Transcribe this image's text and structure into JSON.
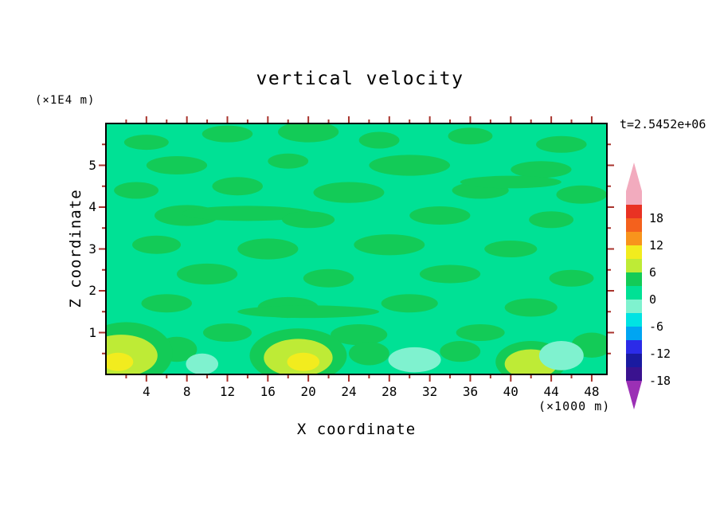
{
  "labels": {
    "title": "vertical velocity",
    "x_axis": "X coordinate",
    "y_axis": "Z coordinate",
    "y_unit": "(×1E4 m)",
    "x_unit": "(×1000 m)",
    "timestamp": "t=2.5452e+06"
  },
  "colors": {
    "background": "#ffffff",
    "frame": "#000000",
    "tick": "#A8332C",
    "text": "#000000"
  },
  "chart_data": {
    "type": "heatmap",
    "style": "filled-contour",
    "title": "vertical velocity",
    "xlabel": "X coordinate (×1000 m)",
    "ylabel": "Z coordinate (×1E4 m)",
    "timestamp": "t=2.5452e+06",
    "x_range": [
      0,
      49.5
    ],
    "z_range": [
      0,
      6
    ],
    "x_tick_labels": [
      4,
      8,
      12,
      16,
      20,
      24,
      28,
      32,
      36,
      40,
      44,
      48
    ],
    "y_tick_labels": [
      1,
      2,
      3,
      4,
      5
    ],
    "x_minor_step": 2,
    "y_minor_step": 0.5,
    "contour_interval": 3,
    "colorbar": {
      "labels": [
        18,
        12,
        6,
        0,
        -6,
        -12,
        -18
      ],
      "segments": [
        {
          "range": [
            18,
            21
          ],
          "color": "#F2ABBE"
        },
        {
          "range": [
            15,
            18
          ],
          "color": "#E93223"
        },
        {
          "range": [
            12,
            15
          ],
          "color": "#F4611D"
        },
        {
          "range": [
            9,
            12
          ],
          "color": "#F8941C"
        },
        {
          "range": [
            6,
            9
          ],
          "color": "#F2EC1E"
        },
        {
          "range": [
            3,
            6
          ],
          "color": "#BEEB36"
        },
        {
          "range": [
            0,
            3
          ],
          "color": "#13CB57"
        },
        {
          "range": [
            -3,
            0
          ],
          "color": "#00E195"
        },
        {
          "range": [
            -6,
            -3
          ],
          "color": "#7FF2CF"
        },
        {
          "range": [
            -9,
            -6
          ],
          "color": "#00E3E3"
        },
        {
          "range": [
            -12,
            -9
          ],
          "color": "#00A5F2"
        },
        {
          "range": [
            -15,
            -12
          ],
          "color": "#2B2BE8"
        },
        {
          "range": [
            -18,
            -15
          ],
          "color": "#1A1AA0"
        },
        {
          "range": [
            -21,
            -18
          ],
          "color": "#3A128F"
        }
      ],
      "top_arrow_color": "#F2ABBE",
      "bottom_arrow_color": "#9B30B5"
    },
    "field": {
      "background_level": [
        -3,
        0
      ],
      "background_color": "#00E195",
      "level_colors": {
        "p0": "#13CB57",
        "p3": "#BEEB36",
        "p6": "#F2EC1E",
        "m6": "#7FF2CF"
      },
      "features": [
        {
          "level": "p0",
          "x": 4,
          "z": 5.55,
          "rx": 2.2,
          "rz": 0.18
        },
        {
          "level": "p0",
          "x": 12,
          "z": 5.75,
          "rx": 2.5,
          "rz": 0.2
        },
        {
          "level": "p0",
          "x": 20,
          "z": 5.8,
          "rx": 3.0,
          "rz": 0.25
        },
        {
          "level": "p0",
          "x": 27,
          "z": 5.6,
          "rx": 2.0,
          "rz": 0.2
        },
        {
          "level": "p0",
          "x": 36,
          "z": 5.7,
          "rx": 2.2,
          "rz": 0.2
        },
        {
          "level": "p0",
          "x": 45,
          "z": 5.5,
          "rx": 2.5,
          "rz": 0.2
        },
        {
          "level": "p0",
          "x": 7,
          "z": 5.0,
          "rx": 3.0,
          "rz": 0.22
        },
        {
          "level": "p0",
          "x": 18,
          "z": 5.1,
          "rx": 2.0,
          "rz": 0.18
        },
        {
          "level": "p0",
          "x": 30,
          "z": 5.0,
          "rx": 4.0,
          "rz": 0.25
        },
        {
          "level": "p0",
          "x": 43,
          "z": 4.9,
          "rx": 3.0,
          "rz": 0.2
        },
        {
          "level": "p0",
          "x": 3,
          "z": 4.4,
          "rx": 2.2,
          "rz": 0.2
        },
        {
          "level": "p0",
          "x": 13,
          "z": 4.5,
          "rx": 2.5,
          "rz": 0.22
        },
        {
          "level": "p0",
          "x": 24,
          "z": 4.35,
          "rx": 3.5,
          "rz": 0.25
        },
        {
          "level": "p0",
          "x": 37,
          "z": 4.4,
          "rx": 2.8,
          "rz": 0.2
        },
        {
          "level": "p0",
          "x": 47,
          "z": 4.3,
          "rx": 2.5,
          "rz": 0.22
        },
        {
          "level": "p0",
          "x": 40,
          "z": 4.6,
          "rx": 5.0,
          "rz": 0.15
        },
        {
          "level": "p0",
          "x": 8,
          "z": 3.8,
          "rx": 3.2,
          "rz": 0.25
        },
        {
          "level": "p0",
          "x": 14,
          "z": 3.85,
          "rx": 6.5,
          "rz": 0.18
        },
        {
          "level": "p0",
          "x": 20,
          "z": 3.7,
          "rx": 2.6,
          "rz": 0.2
        },
        {
          "level": "p0",
          "x": 33,
          "z": 3.8,
          "rx": 3.0,
          "rz": 0.22
        },
        {
          "level": "p0",
          "x": 44,
          "z": 3.7,
          "rx": 2.2,
          "rz": 0.2
        },
        {
          "level": "p0",
          "x": 5,
          "z": 3.1,
          "rx": 2.4,
          "rz": 0.22
        },
        {
          "level": "p0",
          "x": 16,
          "z": 3.0,
          "rx": 3.0,
          "rz": 0.25
        },
        {
          "level": "p0",
          "x": 28,
          "z": 3.1,
          "rx": 3.5,
          "rz": 0.25
        },
        {
          "level": "p0",
          "x": 40,
          "z": 3.0,
          "rx": 2.6,
          "rz": 0.2
        },
        {
          "level": "p0",
          "x": 10,
          "z": 2.4,
          "rx": 3.0,
          "rz": 0.25
        },
        {
          "level": "p0",
          "x": 22,
          "z": 2.3,
          "rx": 2.5,
          "rz": 0.22
        },
        {
          "level": "p0",
          "x": 34,
          "z": 2.4,
          "rx": 3.0,
          "rz": 0.22
        },
        {
          "level": "p0",
          "x": 46,
          "z": 2.3,
          "rx": 2.2,
          "rz": 0.2
        },
        {
          "level": "p0",
          "x": 6,
          "z": 1.7,
          "rx": 2.5,
          "rz": 0.22
        },
        {
          "level": "p0",
          "x": 18,
          "z": 1.6,
          "rx": 3.0,
          "rz": 0.25
        },
        {
          "level": "p0",
          "x": 20,
          "z": 1.5,
          "rx": 7.0,
          "rz": 0.15
        },
        {
          "level": "p0",
          "x": 30,
          "z": 1.7,
          "rx": 2.8,
          "rz": 0.22
        },
        {
          "level": "p0",
          "x": 42,
          "z": 1.6,
          "rx": 2.6,
          "rz": 0.22
        },
        {
          "level": "p0",
          "x": 12,
          "z": 1.0,
          "rx": 2.4,
          "rz": 0.22
        },
        {
          "level": "p0",
          "x": 25,
          "z": 0.95,
          "rx": 2.8,
          "rz": 0.25
        },
        {
          "level": "p0",
          "x": 37,
          "z": 1.0,
          "rx": 2.4,
          "rz": 0.2
        },
        {
          "level": "p0",
          "x": 7,
          "z": 0.6,
          "rx": 2.0,
          "rz": 0.3
        },
        {
          "level": "p0",
          "x": 26,
          "z": 0.5,
          "rx": 2.0,
          "rz": 0.28
        },
        {
          "level": "p0",
          "x": 35,
          "z": 0.55,
          "rx": 2.0,
          "rz": 0.25
        },
        {
          "level": "p0",
          "x": 48,
          "z": 0.7,
          "rx": 2.0,
          "rz": 0.3
        },
        {
          "level": "p0",
          "x": 2,
          "z": 0.5,
          "rx": 4.6,
          "rz": 0.75
        },
        {
          "level": "p0",
          "x": 19,
          "z": 0.45,
          "rx": 4.8,
          "rz": 0.65
        },
        {
          "level": "p0",
          "x": 42,
          "z": 0.3,
          "rx": 3.5,
          "rz": 0.5
        },
        {
          "level": "m6",
          "x": 30.5,
          "z": 0.35,
          "rx": 2.6,
          "rz": 0.3
        },
        {
          "level": "m6",
          "x": 45,
          "z": 0.45,
          "rx": 2.2,
          "rz": 0.35
        },
        {
          "level": "m6",
          "x": 9.5,
          "z": 0.25,
          "rx": 1.6,
          "rz": 0.25
        },
        {
          "level": "p3",
          "x": 1.5,
          "z": 0.45,
          "rx": 3.6,
          "rz": 0.5
        },
        {
          "level": "p3",
          "x": 19,
          "z": 0.4,
          "rx": 3.4,
          "rz": 0.45
        },
        {
          "level": "p3",
          "x": 42,
          "z": 0.25,
          "rx": 2.6,
          "rz": 0.35
        },
        {
          "level": "p6",
          "x": 19.5,
          "z": 0.3,
          "rx": 1.6,
          "rz": 0.22
        },
        {
          "level": "p6",
          "x": 1.2,
          "z": 0.3,
          "rx": 1.5,
          "rz": 0.22
        }
      ]
    }
  }
}
